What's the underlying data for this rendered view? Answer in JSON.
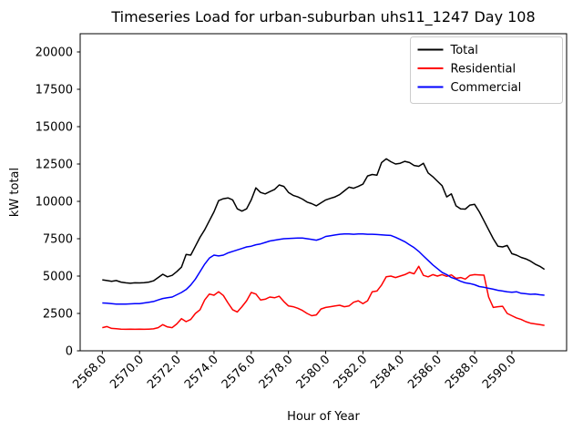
{
  "chart_data": {
    "type": "line",
    "title": "Timeseries Load for urban-suburban uhs11_1247  Day 108",
    "xlabel": "Hour of Year",
    "ylabel": "kW total",
    "xlim": [
      2566.81,
      2592.94
    ],
    "ylim": [
      0,
      21220
    ],
    "grid": false,
    "legend_position": "upper right",
    "x_tick_values": [
      2568,
      2570,
      2572,
      2574,
      2576,
      2578,
      2580,
      2582,
      2584,
      2586,
      2588,
      2590
    ],
    "x_tick_labels": [
      "2568.0",
      "2570.0",
      "2572.0",
      "2574.0",
      "2576.0",
      "2578.0",
      "2580.0",
      "2582.0",
      "2584.0",
      "2586.0",
      "2588.0",
      "2590.0"
    ],
    "y_tick_values": [
      0,
      2500,
      5000,
      7500,
      10000,
      12500,
      15000,
      17500,
      20000
    ],
    "y_tick_labels": [
      "0",
      "2500",
      "5000",
      "7500",
      "10000",
      "12500",
      "15000",
      "17500",
      "20000"
    ],
    "series": [
      {
        "name": "Total",
        "color": "#000000",
        "points": [
          [
            2568.0,
            4750
          ],
          [
            2568.25,
            4700
          ],
          [
            2568.5,
            4650
          ],
          [
            2568.75,
            4700
          ],
          [
            2569.0,
            4600
          ],
          [
            2569.25,
            4550
          ],
          [
            2569.5,
            4520
          ],
          [
            2569.75,
            4550
          ],
          [
            2570.0,
            4540
          ],
          [
            2570.25,
            4560
          ],
          [
            2570.5,
            4600
          ],
          [
            2570.75,
            4680
          ],
          [
            2571.0,
            4900
          ],
          [
            2571.25,
            5120
          ],
          [
            2571.5,
            4950
          ],
          [
            2571.75,
            5050
          ],
          [
            2572.0,
            5300
          ],
          [
            2572.25,
            5600
          ],
          [
            2572.5,
            6450
          ],
          [
            2572.75,
            6400
          ],
          [
            2573.0,
            7000
          ],
          [
            2573.25,
            7600
          ],
          [
            2573.5,
            8100
          ],
          [
            2573.75,
            8700
          ],
          [
            2574.0,
            9300
          ],
          [
            2574.25,
            10050
          ],
          [
            2574.5,
            10180
          ],
          [
            2574.75,
            10230
          ],
          [
            2575.0,
            10100
          ],
          [
            2575.25,
            9500
          ],
          [
            2575.5,
            9350
          ],
          [
            2575.75,
            9500
          ],
          [
            2576.0,
            10100
          ],
          [
            2576.25,
            10900
          ],
          [
            2576.5,
            10600
          ],
          [
            2576.75,
            10500
          ],
          [
            2577.0,
            10650
          ],
          [
            2577.25,
            10800
          ],
          [
            2577.5,
            11100
          ],
          [
            2577.75,
            11000
          ],
          [
            2578.0,
            10600
          ],
          [
            2578.25,
            10400
          ],
          [
            2578.5,
            10300
          ],
          [
            2578.75,
            10150
          ],
          [
            2579.0,
            9950
          ],
          [
            2579.25,
            9850
          ],
          [
            2579.5,
            9700
          ],
          [
            2579.75,
            9900
          ],
          [
            2580.0,
            10100
          ],
          [
            2580.25,
            10200
          ],
          [
            2580.5,
            10300
          ],
          [
            2580.75,
            10450
          ],
          [
            2581.0,
            10700
          ],
          [
            2581.25,
            10950
          ],
          [
            2581.5,
            10880
          ],
          [
            2581.75,
            11000
          ],
          [
            2582.0,
            11150
          ],
          [
            2582.25,
            11700
          ],
          [
            2582.5,
            11800
          ],
          [
            2582.75,
            11750
          ],
          [
            2583.0,
            12600
          ],
          [
            2583.25,
            12850
          ],
          [
            2583.5,
            12650
          ],
          [
            2583.75,
            12500
          ],
          [
            2584.0,
            12550
          ],
          [
            2584.25,
            12680
          ],
          [
            2584.5,
            12600
          ],
          [
            2584.75,
            12400
          ],
          [
            2585.0,
            12350
          ],
          [
            2585.25,
            12550
          ],
          [
            2585.5,
            11900
          ],
          [
            2585.75,
            11650
          ],
          [
            2586.0,
            11350
          ],
          [
            2586.25,
            11050
          ],
          [
            2586.5,
            10300
          ],
          [
            2586.75,
            10500
          ],
          [
            2587.0,
            9700
          ],
          [
            2587.25,
            9500
          ],
          [
            2587.5,
            9480
          ],
          [
            2587.75,
            9750
          ],
          [
            2588.0,
            9800
          ],
          [
            2588.25,
            9300
          ],
          [
            2588.5,
            8700
          ],
          [
            2588.75,
            8100
          ],
          [
            2589.0,
            7500
          ],
          [
            2589.25,
            7000
          ],
          [
            2589.5,
            6950
          ],
          [
            2589.75,
            7050
          ],
          [
            2590.0,
            6500
          ],
          [
            2590.25,
            6400
          ],
          [
            2590.5,
            6250
          ],
          [
            2590.75,
            6150
          ],
          [
            2591.0,
            6000
          ],
          [
            2591.25,
            5800
          ],
          [
            2591.5,
            5650
          ],
          [
            2591.75,
            5450
          ]
        ]
      },
      {
        "name": "Residential",
        "color": "#ff0000",
        "points": [
          [
            2568.0,
            1550
          ],
          [
            2568.25,
            1620
          ],
          [
            2568.5,
            1500
          ],
          [
            2568.75,
            1480
          ],
          [
            2569.0,
            1450
          ],
          [
            2569.25,
            1440
          ],
          [
            2569.5,
            1450
          ],
          [
            2569.75,
            1440
          ],
          [
            2570.0,
            1450
          ],
          [
            2570.25,
            1440
          ],
          [
            2570.5,
            1450
          ],
          [
            2570.75,
            1470
          ],
          [
            2571.0,
            1550
          ],
          [
            2571.25,
            1750
          ],
          [
            2571.5,
            1600
          ],
          [
            2571.75,
            1550
          ],
          [
            2572.0,
            1800
          ],
          [
            2572.25,
            2150
          ],
          [
            2572.5,
            1950
          ],
          [
            2572.75,
            2100
          ],
          [
            2573.0,
            2500
          ],
          [
            2573.25,
            2750
          ],
          [
            2573.5,
            3400
          ],
          [
            2573.75,
            3800
          ],
          [
            2574.0,
            3720
          ],
          [
            2574.25,
            3950
          ],
          [
            2574.5,
            3700
          ],
          [
            2574.75,
            3200
          ],
          [
            2575.0,
            2750
          ],
          [
            2575.25,
            2600
          ],
          [
            2575.5,
            2950
          ],
          [
            2575.75,
            3350
          ],
          [
            2576.0,
            3900
          ],
          [
            2576.25,
            3800
          ],
          [
            2576.5,
            3400
          ],
          [
            2576.75,
            3450
          ],
          [
            2577.0,
            3600
          ],
          [
            2577.25,
            3550
          ],
          [
            2577.5,
            3650
          ],
          [
            2577.75,
            3300
          ],
          [
            2578.0,
            3000
          ],
          [
            2578.25,
            2950
          ],
          [
            2578.5,
            2850
          ],
          [
            2578.75,
            2700
          ],
          [
            2579.0,
            2500
          ],
          [
            2579.25,
            2350
          ],
          [
            2579.5,
            2400
          ],
          [
            2579.75,
            2800
          ],
          [
            2580.0,
            2900
          ],
          [
            2580.25,
            2950
          ],
          [
            2580.5,
            3000
          ],
          [
            2580.75,
            3050
          ],
          [
            2581.0,
            2950
          ],
          [
            2581.25,
            3000
          ],
          [
            2581.5,
            3250
          ],
          [
            2581.75,
            3350
          ],
          [
            2582.0,
            3150
          ],
          [
            2582.25,
            3350
          ],
          [
            2582.5,
            3950
          ],
          [
            2582.75,
            4000
          ],
          [
            2583.0,
            4400
          ],
          [
            2583.25,
            4950
          ],
          [
            2583.5,
            5000
          ],
          [
            2583.75,
            4900
          ],
          [
            2584.0,
            5000
          ],
          [
            2584.25,
            5100
          ],
          [
            2584.5,
            5250
          ],
          [
            2584.75,
            5150
          ],
          [
            2585.0,
            5650
          ],
          [
            2585.25,
            5050
          ],
          [
            2585.5,
            4950
          ],
          [
            2585.75,
            5100
          ],
          [
            2586.0,
            5000
          ],
          [
            2586.25,
            5100
          ],
          [
            2586.5,
            4980
          ],
          [
            2586.75,
            5080
          ],
          [
            2587.0,
            4850
          ],
          [
            2587.25,
            4900
          ],
          [
            2587.5,
            4800
          ],
          [
            2587.75,
            5050
          ],
          [
            2588.0,
            5100
          ],
          [
            2588.25,
            5080
          ],
          [
            2588.5,
            5060
          ],
          [
            2588.75,
            3600
          ],
          [
            2589.0,
            2900
          ],
          [
            2589.25,
            2950
          ],
          [
            2589.5,
            2980
          ],
          [
            2589.75,
            2500
          ],
          [
            2590.0,
            2350
          ],
          [
            2590.25,
            2200
          ],
          [
            2590.5,
            2100
          ],
          [
            2590.75,
            1950
          ],
          [
            2591.0,
            1850
          ],
          [
            2591.25,
            1800
          ],
          [
            2591.5,
            1750
          ],
          [
            2591.75,
            1700
          ]
        ]
      },
      {
        "name": "Commercial",
        "color": "#0000ff",
        "points": [
          [
            2568.0,
            3200
          ],
          [
            2568.25,
            3180
          ],
          [
            2568.5,
            3150
          ],
          [
            2568.75,
            3130
          ],
          [
            2569.0,
            3120
          ],
          [
            2569.25,
            3130
          ],
          [
            2569.5,
            3140
          ],
          [
            2569.75,
            3150
          ],
          [
            2570.0,
            3160
          ],
          [
            2570.25,
            3200
          ],
          [
            2570.5,
            3250
          ],
          [
            2570.75,
            3300
          ],
          [
            2571.0,
            3400
          ],
          [
            2571.25,
            3500
          ],
          [
            2571.5,
            3550
          ],
          [
            2571.75,
            3600
          ],
          [
            2572.0,
            3750
          ],
          [
            2572.25,
            3900
          ],
          [
            2572.5,
            4100
          ],
          [
            2572.75,
            4400
          ],
          [
            2573.0,
            4800
          ],
          [
            2573.25,
            5300
          ],
          [
            2573.5,
            5800
          ],
          [
            2573.75,
            6200
          ],
          [
            2574.0,
            6400
          ],
          [
            2574.25,
            6350
          ],
          [
            2574.5,
            6400
          ],
          [
            2574.75,
            6550
          ],
          [
            2575.0,
            6650
          ],
          [
            2575.25,
            6750
          ],
          [
            2575.5,
            6850
          ],
          [
            2575.75,
            6950
          ],
          [
            2576.0,
            7000
          ],
          [
            2576.25,
            7100
          ],
          [
            2576.5,
            7150
          ],
          [
            2576.75,
            7250
          ],
          [
            2577.0,
            7350
          ],
          [
            2577.25,
            7400
          ],
          [
            2577.5,
            7450
          ],
          [
            2577.75,
            7500
          ],
          [
            2578.0,
            7520
          ],
          [
            2578.25,
            7530
          ],
          [
            2578.5,
            7550
          ],
          [
            2578.75,
            7540
          ],
          [
            2579.0,
            7500
          ],
          [
            2579.25,
            7450
          ],
          [
            2579.5,
            7400
          ],
          [
            2579.75,
            7500
          ],
          [
            2580.0,
            7650
          ],
          [
            2580.25,
            7700
          ],
          [
            2580.5,
            7750
          ],
          [
            2580.75,
            7800
          ],
          [
            2581.0,
            7820
          ],
          [
            2581.25,
            7820
          ],
          [
            2581.5,
            7800
          ],
          [
            2581.75,
            7820
          ],
          [
            2582.0,
            7820
          ],
          [
            2582.25,
            7800
          ],
          [
            2582.5,
            7800
          ],
          [
            2582.75,
            7780
          ],
          [
            2583.0,
            7760
          ],
          [
            2583.25,
            7740
          ],
          [
            2583.5,
            7720
          ],
          [
            2583.75,
            7600
          ],
          [
            2584.0,
            7450
          ],
          [
            2584.25,
            7300
          ],
          [
            2584.5,
            7100
          ],
          [
            2584.75,
            6900
          ],
          [
            2585.0,
            6650
          ],
          [
            2585.25,
            6350
          ],
          [
            2585.5,
            6050
          ],
          [
            2585.75,
            5750
          ],
          [
            2586.0,
            5500
          ],
          [
            2586.25,
            5250
          ],
          [
            2586.5,
            5100
          ],
          [
            2586.75,
            4900
          ],
          [
            2587.0,
            4800
          ],
          [
            2587.25,
            4650
          ],
          [
            2587.5,
            4550
          ],
          [
            2587.75,
            4500
          ],
          [
            2588.0,
            4420
          ],
          [
            2588.25,
            4300
          ],
          [
            2588.5,
            4250
          ],
          [
            2588.75,
            4180
          ],
          [
            2589.0,
            4120
          ],
          [
            2589.25,
            4050
          ],
          [
            2589.5,
            4000
          ],
          [
            2589.75,
            3950
          ],
          [
            2590.0,
            3920
          ],
          [
            2590.25,
            3950
          ],
          [
            2590.5,
            3850
          ],
          [
            2590.75,
            3820
          ],
          [
            2591.0,
            3780
          ],
          [
            2591.25,
            3800
          ],
          [
            2591.5,
            3750
          ],
          [
            2591.75,
            3720
          ]
        ]
      }
    ]
  },
  "colors": {
    "spine": "#000000",
    "legend_border": "#cccccc",
    "background": "#ffffff"
  }
}
